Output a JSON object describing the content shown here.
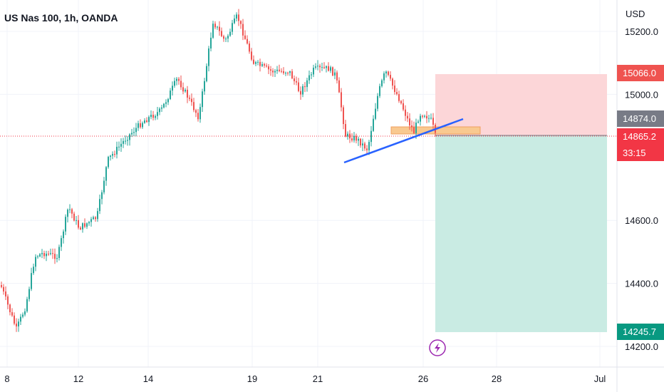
{
  "header": {
    "symbol_title": "US Nas 100, 1h, OANDA"
  },
  "price_axis": {
    "currency": "USD",
    "tick_labels": [
      "15200.0",
      "15000.0",
      "14600.0",
      "14400.0",
      "14200.0"
    ]
  },
  "time_axis": {
    "tick_labels": [
      "8",
      "12",
      "14",
      "19",
      "21",
      "26",
      "28",
      "Jul"
    ]
  },
  "price_tags": {
    "stop_loss": "15066.0",
    "entry": "14874.0",
    "current_price": "14865.2",
    "countdown": "33:15",
    "take_profit": "14245.7"
  },
  "colors": {
    "up": "#26a69a",
    "down": "#ef5350",
    "trendline": "#2962ff",
    "stop_zone": "#fcd6d8",
    "target_zone": "#c9ebe3",
    "entry_zone": "#f9c990",
    "current_price_tag": "#f23645",
    "entry_tag": "#787b86",
    "target_tag": "#089981",
    "event_icon": "#9c27b0"
  },
  "chart_data": {
    "type": "candlestick",
    "title": "US Nas 100, 1h, OANDA",
    "y_unit": "USD",
    "y_range": [
      14180,
      15280
    ],
    "x_ticks": [
      "8",
      "12",
      "14",
      "19",
      "21",
      "26",
      "28",
      "Jul"
    ],
    "approx_close_path": [
      {
        "date": "Jun 8",
        "close": 14300
      },
      {
        "date": "Jun 9",
        "close": 14500
      },
      {
        "date": "Jun 10",
        "close": 14620
      },
      {
        "date": "Jun 12",
        "close": 14700
      },
      {
        "date": "Jun 13",
        "close": 14860
      },
      {
        "date": "Jun 14",
        "close": 14950
      },
      {
        "date": "Jun 15",
        "close": 15090
      },
      {
        "date": "Jun 16",
        "close": 15210
      },
      {
        "date": "Jun 17",
        "close": 15240
      },
      {
        "date": "Jun 19",
        "close": 15060
      },
      {
        "date": "Jun 20",
        "close": 15040
      },
      {
        "date": "Jun 21",
        "close": 15000
      },
      {
        "date": "Jun 22",
        "close": 14830
      },
      {
        "date": "Jun 23",
        "close": 14920
      },
      {
        "date": "Jun 24",
        "close": 15060
      },
      {
        "date": "Jun 25",
        "close": 14950
      },
      {
        "date": "Jun 26",
        "close": 14865
      }
    ],
    "trendline": [
      {
        "date": "Jun 22",
        "price": 14790
      },
      {
        "date": "Jun 27",
        "price": 14920
      }
    ],
    "entry_zone": {
      "from": 14868,
      "to": 14890
    },
    "position": {
      "type": "short",
      "entry": 14874.0,
      "stop": 15066.0,
      "target": 14245.7
    },
    "current_price": 14865.2
  }
}
